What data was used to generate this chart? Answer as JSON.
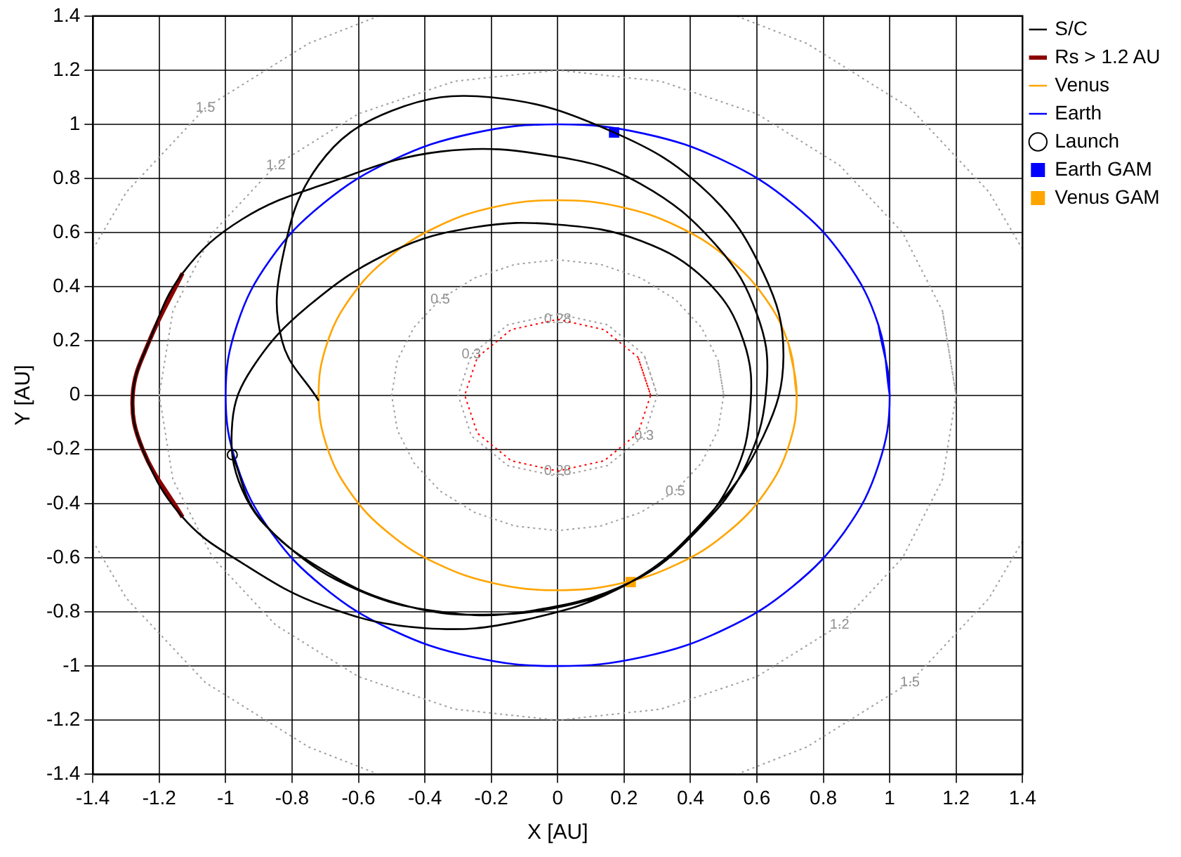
{
  "chart_data": {
    "type": "line",
    "xlabel": "X [AU]",
    "ylabel": "Y [AU]",
    "xlim": [
      -1.4,
      1.4
    ],
    "ylim": [
      -1.4,
      1.4
    ],
    "xticks": [
      -1.4,
      -1.2,
      -1,
      -0.8,
      -0.6,
      -0.4,
      -0.2,
      0,
      0.2,
      0.4,
      0.6,
      0.8,
      1,
      1.2,
      1.4
    ],
    "yticks": [
      -1.4,
      -1.2,
      -1,
      -0.8,
      -0.6,
      -0.4,
      -0.2,
      0,
      0.2,
      0.4,
      0.6,
      0.8,
      1,
      1.2,
      1.4
    ],
    "grid": true,
    "legend": "top right",
    "annotations": [
      {
        "text": "1.5",
        "x": -1.061,
        "y": 1.061
      },
      {
        "text": "1.5",
        "x": 1.061,
        "y": -1.061
      },
      {
        "text": "1.2",
        "x": -0.849,
        "y": 0.849
      },
      {
        "text": "1.2",
        "x": 0.849,
        "y": -0.849
      },
      {
        "text": "0.5",
        "x": -0.354,
        "y": 0.354
      },
      {
        "text": "0.5",
        "x": 0.354,
        "y": -0.354
      },
      {
        "text": "0.3",
        "x": -0.26,
        "y": 0.15
      },
      {
        "text": "0.3",
        "x": 0.26,
        "y": -0.15
      },
      {
        "text": "0.28",
        "x": 0,
        "y": 0.28
      },
      {
        "text": "0.28",
        "x": 0,
        "y": -0.28
      }
    ],
    "series": [
      {
        "name": "S/C",
        "color": "#000000",
        "line_style": "solid",
        "x": [
          -0.98,
          -0.9,
          -0.7,
          -0.45,
          -0.2,
          0.05,
          0.22,
          0.4,
          0.53,
          0.58,
          0.56,
          0.45,
          0.25,
          0,
          -0.25,
          -0.5,
          -0.75,
          -0.92,
          -0.98,
          -0.95,
          -0.82,
          -0.6,
          -0.35,
          -0.1,
          0.22,
          0.42,
          0.57,
          0.63,
          0.6,
          0.48,
          0.25,
          0,
          -0.35,
          -0.7,
          -0.95,
          -1.13,
          -1.23,
          -1.28,
          -1.25,
          -1.13,
          -0.95,
          -0.7,
          -0.4,
          -0.1,
          0.22,
          0.45,
          0.62,
          0.68,
          0.62,
          0.45,
          0.17,
          -0.2,
          -0.5,
          -0.72,
          -0.83,
          -0.83,
          -0.72
        ],
        "values": [
          -0.22,
          -0.45,
          -0.65,
          -0.78,
          -0.81,
          -0.77,
          -0.69,
          -0.52,
          -0.3,
          -0.05,
          0.2,
          0.42,
          0.57,
          0.63,
          0.62,
          0.53,
          0.33,
          0.1,
          -0.1,
          -0.35,
          -0.55,
          -0.72,
          -0.8,
          -0.8,
          -0.69,
          -0.5,
          -0.25,
          0.05,
          0.3,
          0.55,
          0.78,
          0.88,
          0.9,
          0.78,
          0.65,
          0.45,
          0.2,
          0,
          -0.2,
          -0.45,
          -0.62,
          -0.78,
          -0.86,
          -0.83,
          -0.69,
          -0.45,
          -0.15,
          0.15,
          0.45,
          0.75,
          0.97,
          1.1,
          1.05,
          0.85,
          0.5,
          0.2,
          -0.02
        ]
      },
      {
        "name": "Rs > 1.2 AU",
        "color": "#8b0000",
        "line_style": "solid",
        "x": [
          -1.13,
          -1.23,
          -1.28,
          -1.25,
          -1.13
        ],
        "values": [
          0.45,
          0.2,
          0,
          -0.2,
          -0.45
        ]
      },
      {
        "name": "Venus",
        "color": "#ffa500",
        "line_style": "solid",
        "x": [
          0.72,
          0.696,
          0.624,
          0.509,
          0.36,
          0.186,
          0,
          -0.186,
          -0.36,
          -0.509,
          -0.624,
          -0.696,
          -0.72,
          -0.696,
          -0.624,
          -0.509,
          -0.36,
          -0.186,
          0,
          0.186,
          0.36,
          0.509,
          0.624,
          0.696,
          0.72,
          0.696
        ],
        "values": [
          0,
          0.186,
          0.36,
          0.509,
          0.624,
          0.696,
          0.72,
          0.696,
          0.624,
          0.509,
          0.36,
          0.186,
          0,
          -0.186,
          -0.36,
          -0.509,
          -0.624,
          -0.696,
          -0.72,
          -0.696,
          -0.624,
          -0.509,
          -0.36,
          -0.186,
          0,
          0.186
        ]
      },
      {
        "name": "Earth",
        "color": "#0000ff",
        "line_style": "solid",
        "x": [
          1,
          0.966,
          0.866,
          0.707,
          0.5,
          0.259,
          0,
          -0.259,
          -0.5,
          -0.707,
          -0.866,
          -0.966,
          -1,
          -0.966,
          -0.866,
          -0.707,
          -0.5,
          -0.259,
          0,
          0.259,
          0.5,
          0.707,
          0.866,
          0.966,
          1,
          0.966
        ],
        "values": [
          0,
          0.259,
          0.5,
          0.707,
          0.866,
          0.966,
          1,
          0.966,
          0.866,
          0.707,
          0.5,
          0.259,
          0,
          -0.259,
          -0.5,
          -0.707,
          -0.866,
          -0.966,
          -1,
          -0.966,
          -0.866,
          -0.707,
          -0.5,
          -0.259,
          0,
          0.259
        ]
      },
      {
        "name": "Launch",
        "type": "scatter",
        "color": "#000000",
        "marker": "circle",
        "x": [
          -0.98
        ],
        "values": [
          -0.22
        ]
      },
      {
        "name": "Earth GAM",
        "type": "scatter",
        "color": "#0000ff",
        "marker": "square",
        "x": [
          0.17
        ],
        "values": [
          0.97
        ]
      },
      {
        "name": "Venus GAM",
        "type": "scatter",
        "color": "#ffa500",
        "marker": "square",
        "x": [
          0.22
        ],
        "values": [
          -0.69
        ]
      },
      {
        "color": "#ff0000",
        "line_style": "dotted",
        "x": [
          0.28,
          0.242,
          0.14,
          0,
          -0.14,
          -0.242,
          -0.28,
          -0.242,
          -0.14,
          0,
          0.14,
          0.242,
          0.28,
          0.242
        ],
        "values": [
          0,
          0.14,
          0.242,
          0.28,
          0.242,
          0.14,
          0,
          -0.14,
          -0.242,
          -0.28,
          -0.242,
          -0.14,
          0,
          0.14
        ]
      },
      {
        "color": "#a0a0a0",
        "line_style": "dotted",
        "x": [
          0.3,
          0.26,
          0.15,
          0,
          -0.15,
          -0.26,
          -0.3,
          -0.26,
          -0.15,
          0,
          0.15,
          0.26,
          0.3,
          0.26
        ],
        "values": [
          0,
          0.15,
          0.26,
          0.3,
          0.26,
          0.15,
          0,
          -0.15,
          -0.26,
          -0.3,
          -0.26,
          -0.15,
          0,
          0.15
        ]
      },
      {
        "color": "#a0a0a0",
        "line_style": "dotted",
        "x": [
          0.5,
          0.483,
          0.433,
          0.354,
          0.25,
          0.129,
          0,
          -0.129,
          -0.25,
          -0.354,
          -0.433,
          -0.483,
          -0.5,
          -0.483,
          -0.433,
          -0.354,
          -0.25,
          -0.129,
          0,
          0.129,
          0.25,
          0.354,
          0.433,
          0.483,
          0.5,
          0.483
        ],
        "values": [
          0,
          0.129,
          0.25,
          0.354,
          0.433,
          0.483,
          0.5,
          0.483,
          0.433,
          0.354,
          0.25,
          0.129,
          0,
          -0.129,
          -0.25,
          -0.354,
          -0.433,
          -0.483,
          -0.5,
          -0.483,
          -0.433,
          -0.354,
          -0.25,
          -0.129,
          0,
          0.129
        ]
      },
      {
        "color": "#a0a0a0",
        "line_style": "dotted",
        "x": [
          1.2,
          1.159,
          1.039,
          0.849,
          0.6,
          0.311,
          0,
          -0.311,
          -0.6,
          -0.849,
          -1.039,
          -1.159,
          -1.2,
          -1.159,
          -1.039,
          -0.849,
          -0.6,
          -0.311,
          0,
          0.311,
          0.6,
          0.849,
          1.039,
          1.159,
          1.2,
          1.159
        ],
        "values": [
          0,
          0.311,
          0.6,
          0.849,
          1.039,
          1.159,
          1.2,
          1.159,
          1.039,
          0.849,
          0.6,
          0.311,
          0,
          -0.311,
          -0.6,
          -0.849,
          -1.039,
          -1.159,
          -1.2,
          -1.159,
          -1.039,
          -0.849,
          -0.6,
          -0.311,
          0,
          0.311
        ]
      },
      {
        "color": "#a0a0a0",
        "line_style": "dotted",
        "x": [
          1.4,
          1.299,
          1.061,
          0.75,
          0.539,
          null,
          -0.539,
          -0.75,
          -1.061,
          -1.299,
          -1.4,
          null,
          -1.4,
          -1.299,
          -1.061,
          -0.75,
          -0.539,
          null,
          0.539,
          0.75,
          1.061,
          1.299,
          1.4
        ],
        "values": [
          0.539,
          0.75,
          1.061,
          1.299,
          1.4,
          null,
          1.4,
          1.299,
          1.061,
          0.75,
          0.539,
          null,
          -0.539,
          -0.75,
          -1.061,
          -1.299,
          -1.4,
          null,
          -1.4,
          -1.299,
          -1.061,
          -0.75,
          -0.539
        ]
      }
    ]
  }
}
